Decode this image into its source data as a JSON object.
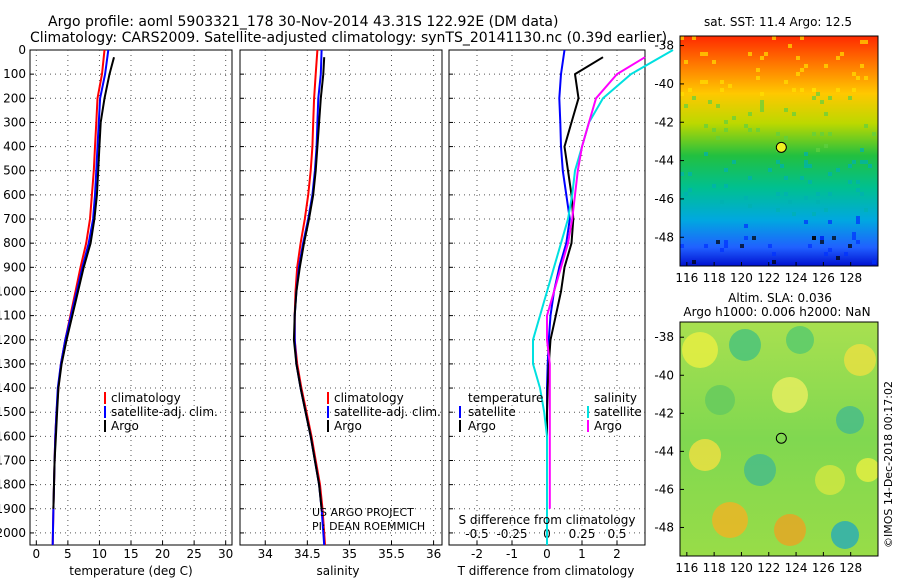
{
  "title": {
    "line1": "Argo profile: aoml 5903321_178 30-Nov-2014 43.31S 122.92E (DM data)",
    "line2": "Climatology: CARS2009. Satellite-adjusted climatology: synTS_20141130.nc (0.39d earlier)"
  },
  "colors": {
    "climatology": "#ff0000",
    "satellite": "#0000ff",
    "argo": "#000000",
    "satellite_salinity": "#00e0e0",
    "argo_salinity": "#ff00ff"
  },
  "chart_data": [
    {
      "type": "line",
      "xlabel": "temperature (deg C)",
      "xlim": [
        -1,
        31
      ],
      "xticks": [
        0,
        5,
        10,
        15,
        20,
        25,
        30
      ],
      "ylim": [
        2050,
        0
      ],
      "yticks": [
        0,
        100,
        200,
        300,
        400,
        500,
        600,
        700,
        800,
        900,
        1000,
        1100,
        1200,
        1300,
        1400,
        1500,
        1600,
        1700,
        1800,
        1900,
        2000
      ],
      "ytick_labels": [
        "0",
        "100",
        "200",
        "300",
        "400",
        "500",
        "600",
        "700",
        "800",
        "900",
        "1000",
        "1100",
        "1200",
        "1300",
        "1400",
        "1500",
        "1600",
        "1700",
        "1800",
        "1900",
        "2000"
      ],
      "legend": [
        "climatology",
        "satellite-adj. clim.",
        "Argo"
      ],
      "series": [
        {
          "name": "climatology",
          "color": "#ff0000",
          "x": [
            10.8,
            10.4,
            9.7,
            9.5,
            9.3,
            9.1,
            8.8,
            8.5,
            7.9,
            7.0,
            6.2,
            5.4,
            4.6,
            3.9,
            3.5,
            3.2,
            3.0,
            2.9,
            2.8,
            2.7,
            2.6
          ],
          "y": [
            0,
            100,
            200,
            300,
            400,
            500,
            600,
            700,
            800,
            900,
            1000,
            1100,
            1200,
            1300,
            1400,
            1500,
            1600,
            1700,
            1800,
            1900,
            2050
          ]
        },
        {
          "name": "satellite-adj. clim.",
          "color": "#0000ff",
          "x": [
            11.4,
            10.9,
            10.1,
            9.9,
            9.7,
            9.5,
            9.3,
            9.0,
            8.3,
            7.3,
            6.4,
            5.5,
            4.6,
            3.9,
            3.4,
            3.2,
            3.0,
            2.9,
            2.8,
            2.7,
            2.6
          ],
          "y": [
            0,
            100,
            200,
            300,
            400,
            500,
            600,
            700,
            800,
            900,
            1000,
            1100,
            1200,
            1300,
            1400,
            1500,
            1600,
            1700,
            1800,
            1900,
            2050
          ]
        },
        {
          "name": "Argo",
          "color": "#000000",
          "x": [
            12.3,
            11.6,
            10.8,
            10.2,
            10.0,
            9.8,
            9.6,
            9.2,
            8.6,
            7.5,
            6.6,
            5.7,
            4.8,
            4.0,
            3.5,
            3.3,
            3.1,
            2.9,
            2.8,
            2.7
          ],
          "y": [
            30,
            100,
            200,
            300,
            400,
            500,
            600,
            700,
            800,
            900,
            1000,
            1100,
            1200,
            1300,
            1400,
            1500,
            1600,
            1700,
            1800,
            1900
          ]
        }
      ]
    },
    {
      "type": "line",
      "xlabel": "salinity",
      "xlim": [
        33.7,
        36.1
      ],
      "xticks": [
        34,
        34.5,
        35,
        35.5,
        36
      ],
      "xtick_labels": [
        "34",
        "34.5",
        "35",
        "35.5",
        "36"
      ],
      "ylim": [
        2050,
        0
      ],
      "legend": [
        "climatology",
        "satellite-adj. clim.",
        "Argo"
      ],
      "annotation": [
        "US ARGO PROJECT",
        "PI: DEAN ROEMMICH"
      ],
      "series": [
        {
          "name": "climatology",
          "color": "#ff0000",
          "x": [
            34.62,
            34.6,
            34.58,
            34.57,
            34.56,
            34.54,
            34.51,
            34.47,
            34.42,
            34.38,
            34.36,
            34.35,
            34.35,
            34.38,
            34.43,
            34.49,
            34.55,
            34.6,
            34.65,
            34.68,
            34.71
          ],
          "y": [
            0,
            100,
            200,
            300,
            400,
            500,
            600,
            700,
            800,
            900,
            1000,
            1100,
            1200,
            1300,
            1400,
            1500,
            1600,
            1700,
            1800,
            1900,
            2050
          ]
        },
        {
          "name": "satellite-adj. clim.",
          "color": "#0000ff",
          "x": [
            34.67,
            34.66,
            34.63,
            34.62,
            34.61,
            34.59,
            34.56,
            34.51,
            34.45,
            34.4,
            34.37,
            34.35,
            34.35,
            34.37,
            34.42,
            34.48,
            34.54,
            34.59,
            34.64,
            34.67,
            34.7
          ],
          "y": [
            0,
            100,
            200,
            300,
            400,
            500,
            600,
            700,
            800,
            900,
            1000,
            1100,
            1200,
            1300,
            1400,
            1500,
            1600,
            1700,
            1800,
            1900,
            2050
          ]
        },
        {
          "name": "Argo",
          "color": "#000000",
          "x": [
            34.7,
            34.69,
            34.66,
            34.64,
            34.62,
            34.6,
            34.57,
            34.52,
            34.46,
            34.41,
            34.37,
            34.35,
            34.34,
            34.37,
            34.42,
            34.48,
            34.54,
            34.59,
            34.64,
            34.67
          ],
          "y": [
            30,
            100,
            200,
            300,
            400,
            500,
            600,
            700,
            800,
            900,
            1000,
            1100,
            1200,
            1300,
            1400,
            1500,
            1600,
            1700,
            1800,
            1900
          ]
        }
      ]
    },
    {
      "type": "line",
      "xlabel": "T difference from climatology",
      "x2label": "S difference from climatology",
      "xlim": [
        -2.8,
        2.8
      ],
      "xticks": [
        -2,
        -1,
        0,
        1,
        2
      ],
      "xtick_labels": [
        "-2",
        "-1",
        "0",
        "1",
        "2"
      ],
      "x2ticks": [
        -0.5,
        -0.25,
        0,
        0.25,
        0.5
      ],
      "x2tick_labels": [
        "-0.5",
        "-0.25",
        "0",
        "0.25",
        "0.5"
      ],
      "ylim": [
        2050,
        0
      ],
      "legend_temperature": {
        "heading": "temperature",
        "entries": [
          "satellite",
          "Argo"
        ]
      },
      "legend_salinity": {
        "heading": "salinity",
        "entries": [
          "satellite",
          "Argo"
        ]
      },
      "series": [
        {
          "name": "satellite",
          "group": "temperature",
          "color": "#0000ff",
          "x": [
            0.5,
            0.4,
            0.35,
            0.38,
            0.4,
            0.45,
            0.55,
            0.65,
            0.55,
            0.35,
            0.2,
            0.1,
            0.05,
            0.02,
            0.0,
            0.0,
            0.0,
            0.0,
            0.0,
            0.0,
            0.0
          ],
          "y": [
            0,
            100,
            200,
            300,
            400,
            500,
            600,
            700,
            800,
            900,
            1000,
            1100,
            1200,
            1300,
            1400,
            1500,
            1600,
            1700,
            1800,
            1900,
            2050
          ]
        },
        {
          "name": "Argo",
          "group": "temperature",
          "color": "#000000",
          "x": [
            1.6,
            0.8,
            0.9,
            0.7,
            0.5,
            0.6,
            0.7,
            0.75,
            0.7,
            0.5,
            0.4,
            0.25,
            0.1,
            0.05,
            0.02,
            0.0,
            0.0,
            0.0,
            0.0,
            0.0
          ],
          "y": [
            30,
            100,
            200,
            300,
            400,
            500,
            600,
            700,
            800,
            900,
            1000,
            1100,
            1200,
            1300,
            1400,
            1500,
            1600,
            1700,
            1800,
            1900
          ]
        },
        {
          "name": "satellite",
          "group": "salinity",
          "color": "#00e0e0",
          "x": [
            0.9,
            0.6,
            0.4,
            0.3,
            0.25,
            0.2,
            0.18,
            0.15,
            0.1,
            0.05,
            0.0,
            -0.05,
            -0.1,
            -0.1,
            -0.05,
            -0.02,
            0.0,
            0.0,
            0.0,
            0.0,
            0.0
          ],
          "y": [
            0,
            100,
            200,
            300,
            400,
            500,
            600,
            700,
            800,
            900,
            1000,
            1100,
            1200,
            1300,
            1400,
            1500,
            1600,
            1700,
            1800,
            1900,
            2050
          ]
        },
        {
          "name": "Argo",
          "group": "salinity",
          "color": "#ff00ff",
          "x": [
            0.7,
            0.5,
            0.35,
            0.3,
            0.25,
            0.22,
            0.2,
            0.18,
            0.15,
            0.1,
            0.05,
            0.0,
            0.0,
            0.02,
            0.02,
            0.02,
            0.02,
            0.02,
            0.02,
            0.02
          ],
          "y": [
            30,
            100,
            200,
            300,
            400,
            500,
            600,
            700,
            800,
            900,
            1000,
            1100,
            1200,
            1300,
            1400,
            1500,
            1600,
            1700,
            1800,
            1900
          ]
        }
      ]
    },
    {
      "type": "heatmap",
      "title": "sat. SST: 11.4 Argo: 12.5",
      "xlim": [
        115.5,
        130
      ],
      "ylim": [
        -49.5,
        -37.5
      ],
      "xticks": [
        116,
        118,
        120,
        122,
        124,
        126,
        128
      ],
      "yticks": [
        -38,
        -40,
        -42,
        -44,
        -46,
        -48
      ],
      "marker": {
        "lon": 122.92,
        "lat": -43.31
      }
    },
    {
      "type": "heatmap",
      "title": "Altim. SLA: 0.036",
      "subtitle": "Argo h1000: 0.006 h2000: NaN",
      "xlim": [
        115.5,
        130
      ],
      "ylim": [
        -49.5,
        -37.2
      ],
      "xticks": [
        116,
        118,
        120,
        122,
        124,
        126,
        128
      ],
      "yticks": [
        -38,
        -40,
        -42,
        -44,
        -46,
        -48
      ],
      "marker": {
        "lon": 122.92,
        "lat": -43.31
      }
    }
  ],
  "footer_stamp": "©IMOS 14-Dec-2018 00:17:02"
}
